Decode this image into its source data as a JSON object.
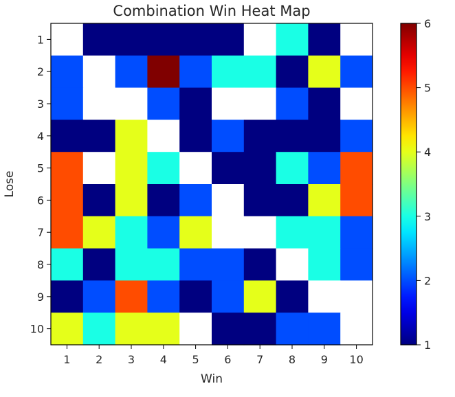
{
  "chart_data": {
    "type": "heatmap",
    "title": "Combination Win Heat Map",
    "xlabel": "Win",
    "ylabel": "Lose",
    "x_categories": [
      "1",
      "2",
      "3",
      "4",
      "5",
      "6",
      "7",
      "8",
      "9",
      "10"
    ],
    "y_categories": [
      "1",
      "2",
      "3",
      "4",
      "5",
      "6",
      "7",
      "8",
      "9",
      "10"
    ],
    "values": [
      [
        null,
        1,
        1,
        1,
        1,
        1,
        null,
        3,
        1,
        null
      ],
      [
        2,
        null,
        2,
        6,
        2,
        3,
        3,
        1,
        4,
        2
      ],
      [
        2,
        null,
        null,
        2,
        1,
        null,
        null,
        2,
        1,
        null
      ],
      [
        1,
        1,
        4,
        null,
        1,
        2,
        1,
        1,
        1,
        2
      ],
      [
        5,
        null,
        4,
        3,
        null,
        1,
        1,
        3,
        2,
        5
      ],
      [
        5,
        1,
        4,
        1,
        2,
        null,
        1,
        1,
        4,
        5
      ],
      [
        5,
        4,
        3,
        2,
        4,
        null,
        null,
        3,
        3,
        2
      ],
      [
        3,
        1,
        3,
        3,
        2,
        2,
        1,
        null,
        3,
        2
      ],
      [
        1,
        2,
        5,
        2,
        1,
        2,
        4,
        1,
        null,
        null
      ],
      [
        4,
        3,
        4,
        4,
        null,
        1,
        1,
        2,
        2,
        null
      ]
    ],
    "missing_color": "#ffffff",
    "colormap": "jet",
    "colorbar": {
      "min": 1,
      "max": 6,
      "ticks": [
        "1",
        "2",
        "3",
        "4",
        "5",
        "6"
      ]
    },
    "grid": false
  }
}
